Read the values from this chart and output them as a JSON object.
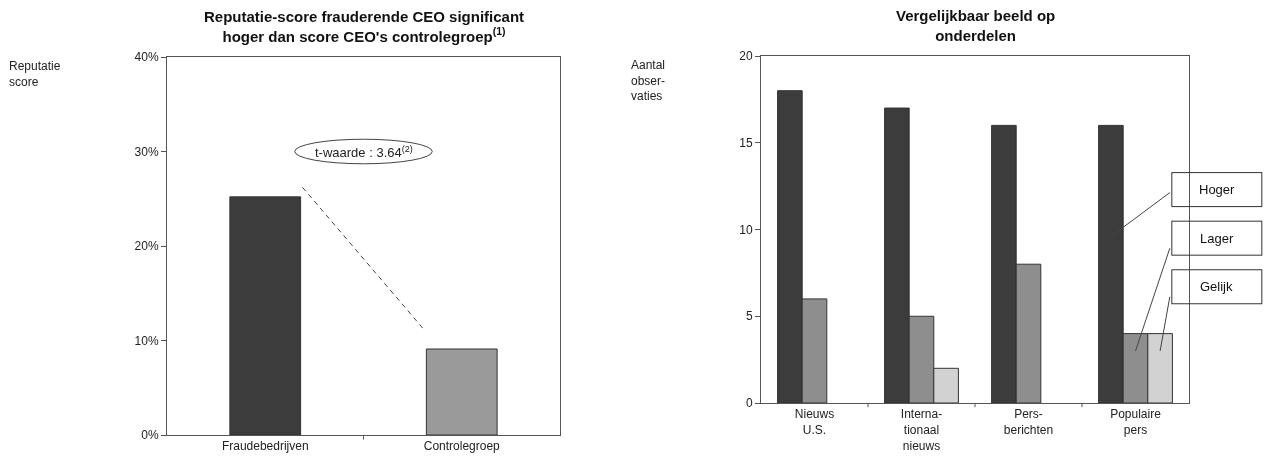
{
  "chart_data": [
    {
      "type": "bar",
      "title": "Reputatie-score frauderende CEO significant\nhoger dan score CEO's controlegroep$^{(1)}$",
      "ylabel": "Reputatie\nscore",
      "categories": [
        "Fraudebedrijven",
        "Controlegroep"
      ],
      "values": [
        25.2,
        9.1
      ],
      "colors": [
        "#3c3c3c",
        "#9a9a9a"
      ],
      "ylim": [
        0,
        40
      ],
      "yticks": [
        {
          "value": 0,
          "label": "0%"
        },
        {
          "value": 10,
          "label": "10%"
        },
        {
          "value": 20,
          "label": "20%"
        },
        {
          "value": 30,
          "label": "30%"
        },
        {
          "value": 40,
          "label": "40%"
        }
      ],
      "grid": false,
      "annotations": [
        "t-waarde : 3.64$^{(2)}$"
      ]
    },
    {
      "type": "bar",
      "title": "Vergelijkbaar beeld op\nonderdelen",
      "ylabel": "Aantal\nobser-\nvaties",
      "categories": [
        "Nieuws\nU.S.",
        "Interna-\ntionaal\nnieuws",
        "Pers-\nberichten",
        "Populaire\npers"
      ],
      "series": [
        {
          "name": "Hoger",
          "color": "#3c3c3c",
          "values": [
            18,
            17,
            16,
            16
          ]
        },
        {
          "name": "Lager",
          "color": "#8e8e8e",
          "values": [
            6,
            5,
            8,
            4
          ]
        },
        {
          "name": "Gelijk",
          "color": "#d2d2d2",
          "values": [
            null,
            2,
            null,
            4
          ]
        }
      ],
      "ylim": [
        0,
        20
      ],
      "yticks": [
        0,
        5,
        10,
        15,
        20
      ],
      "grid": false
    }
  ]
}
